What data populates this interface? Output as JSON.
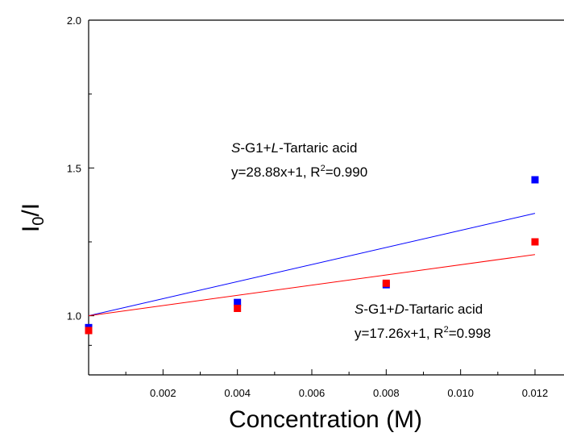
{
  "chart_data": {
    "type": "scatter",
    "xlabel": "Concentration (M)",
    "ylabel_main": "I",
    "ylabel_sub": "0",
    "ylabel_tail": "/I",
    "xlim": [
      0,
      0.0125
    ],
    "ylim": [
      0.8,
      2.0
    ],
    "xticks": [
      0.002,
      0.004,
      0.006,
      0.008,
      0.01,
      0.012
    ],
    "xtick_labels": [
      "0.002",
      "0.004",
      "0.006",
      "0.008",
      "0.010",
      "0.012"
    ],
    "xminor": [
      0.001,
      0.003,
      0.005,
      0.007,
      0.009,
      0.011
    ],
    "yticks": [
      1.0,
      1.5,
      2.0
    ],
    "ytick_labels": [
      "1.0",
      "1.5",
      "2.0"
    ],
    "yminor": [
      0.9,
      1.25,
      1.75
    ],
    "grid": false,
    "series": [
      {
        "color": "#0000ff",
        "x": [
          0,
          0.004,
          0.008,
          0.012
        ],
        "y": [
          0.96,
          1.045,
          1.105,
          1.46
        ],
        "fit": {
          "slope": 28.88,
          "intercept": 1
        }
      },
      {
        "color": "#ff0000",
        "x": [
          0,
          0.004,
          0.008,
          0.012
        ],
        "y": [
          0.95,
          1.025,
          1.11,
          1.25
        ],
        "fit": {
          "slope": 17.26,
          "intercept": 1
        }
      }
    ],
    "annotations": [
      {
        "name_prefix": "S",
        "name_mid": "-G1+",
        "name_chiral": "L",
        "name_suffix": "-Tartaric acid",
        "equation": "y=28.88x+1, R",
        "r_sup": "2",
        "r_value": "=0.990"
      },
      {
        "name_prefix": "S",
        "name_mid": "-G1+",
        "name_chiral": "D",
        "name_suffix": "-Tartaric acid",
        "equation": "y=17.26x+1, R",
        "r_sup": "2",
        "r_value": "=0.998"
      }
    ]
  }
}
